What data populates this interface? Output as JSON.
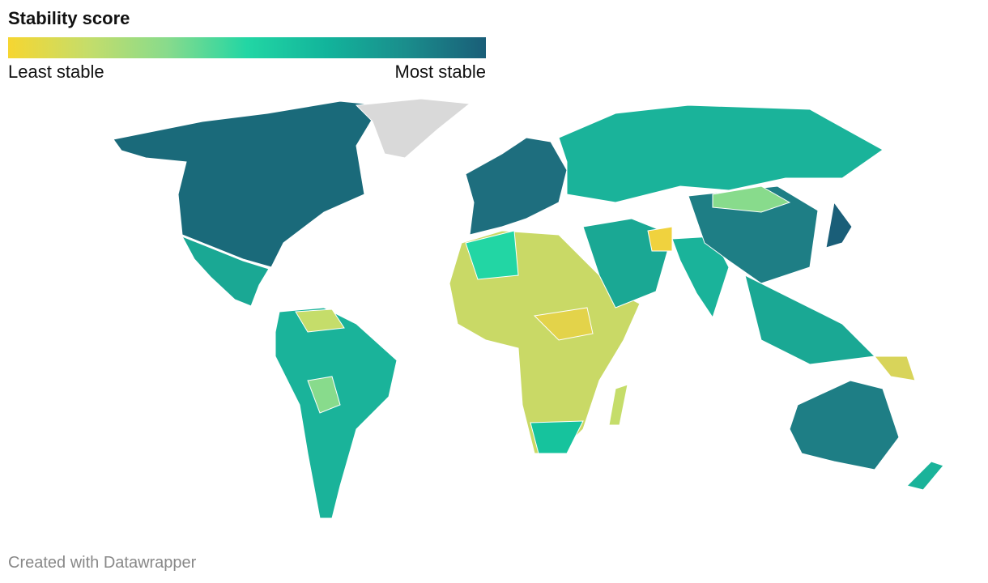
{
  "legend": {
    "title": "Stability score",
    "low_label": "Least stable",
    "high_label": "Most stable",
    "colors": [
      "#f6d631",
      "#c5dd6a",
      "#88db8c",
      "#22d6a4",
      "#12b49b",
      "#1a8d8c",
      "#1a5e78"
    ]
  },
  "footer": "Created with Datawrapper"
}
